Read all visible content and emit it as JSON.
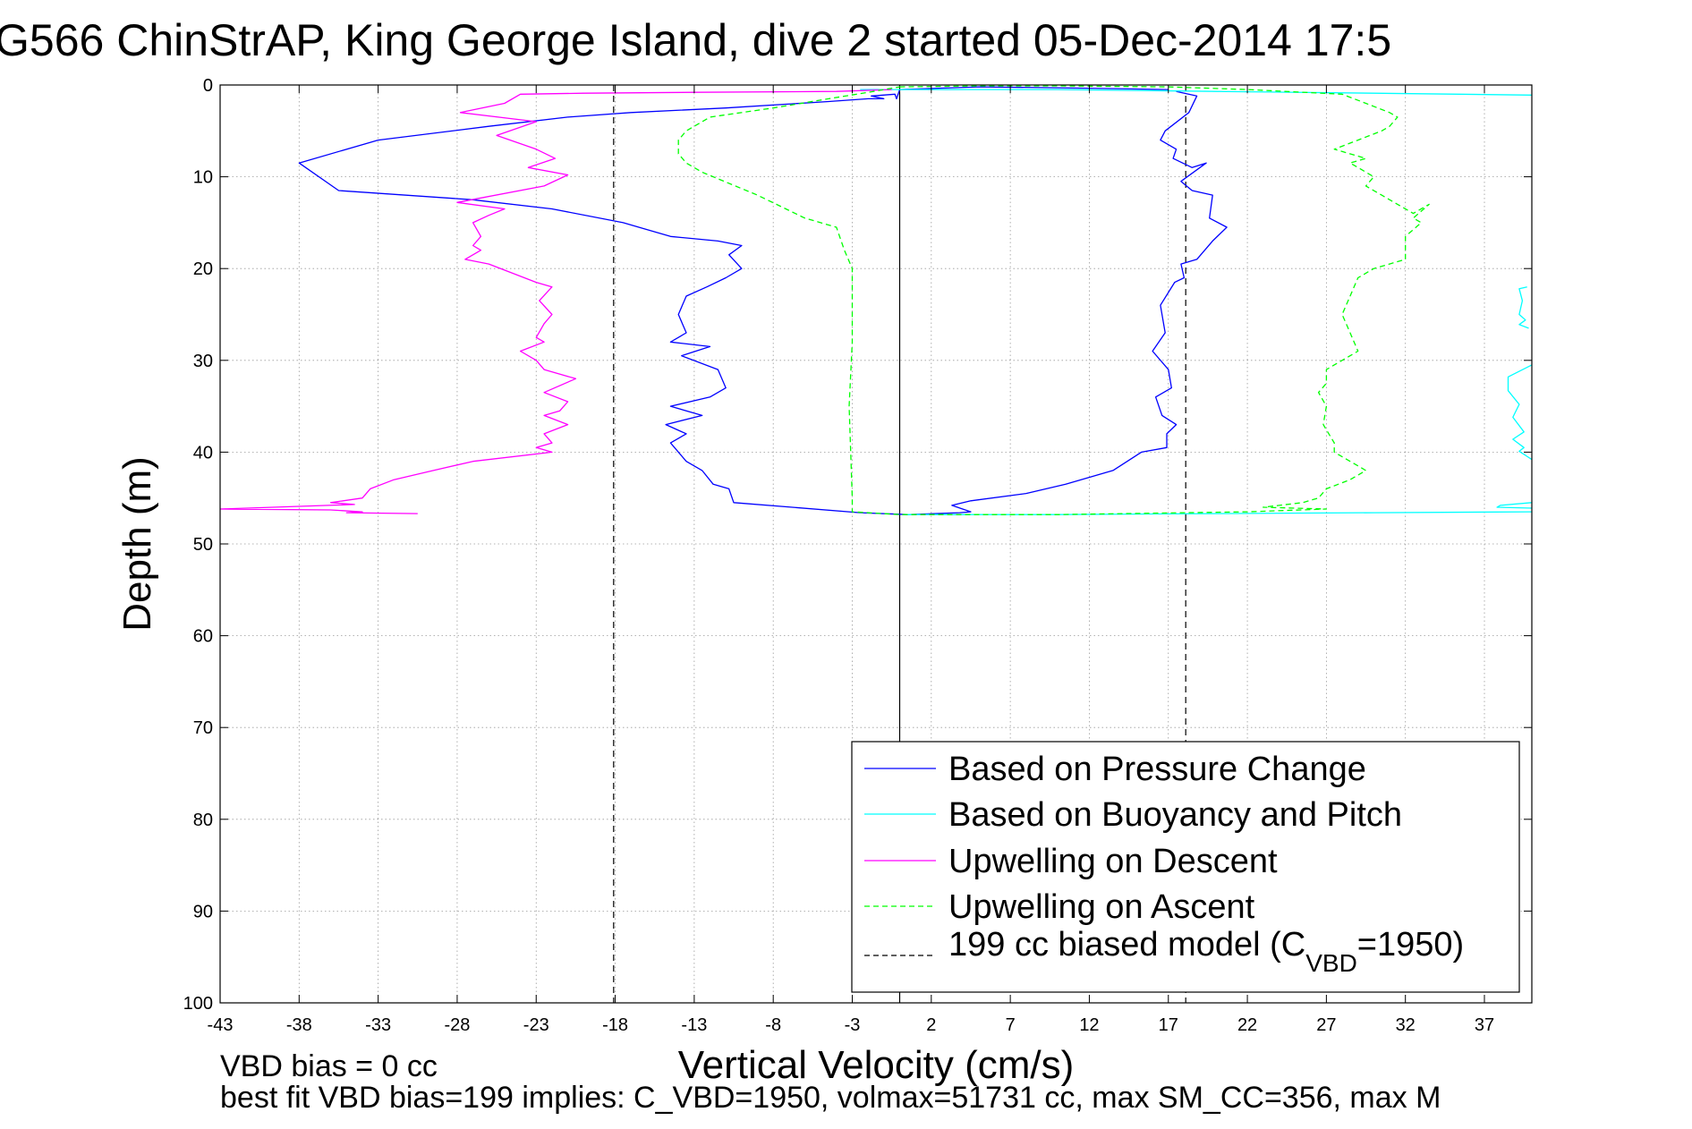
{
  "chart_data": {
    "type": "line",
    "title": "G566 ChinStrAP, King George Island, dive 2 started 05-Dec-2014 17:5",
    "xlabel": "Vertical Velocity (cm/s)",
    "ylabel": "Depth (m)",
    "xlim": [
      -43,
      40
    ],
    "ylim": [
      0,
      100
    ],
    "y_reversed": true,
    "grid": true,
    "legend_position": "bottom-right",
    "x_ticks": [
      -43,
      -38,
      -33,
      -28,
      -23,
      -18,
      -13,
      -8,
      -3,
      2,
      7,
      12,
      17,
      22,
      27,
      32,
      37
    ],
    "y_ticks": [
      0,
      10,
      20,
      30,
      40,
      50,
      60,
      70,
      80,
      90,
      100
    ],
    "notes": [
      "VBD bias = 0 cc",
      "best fit VBD bias=199 implies: C_VBD=1950, volmax=51731 cc, max SM_CC=356, max M"
    ],
    "legend": {
      "entries": [
        {
          "label": "Based on Pressure Change",
          "color": "#0000ff",
          "dash": "solid"
        },
        {
          "label": "Based on Buoyancy and Pitch",
          "color": "#00ffff",
          "dash": "solid"
        },
        {
          "label": "Upwelling on Descent",
          "color": "#ff00ff",
          "dash": "solid"
        },
        {
          "label": "Upwelling on Ascent",
          "color": "#00ff00",
          "dash": "dashed"
        }
      ],
      "model_label_prefix": "199 cc biased model (C",
      "model_label_sub": "VBD",
      "model_label_suffix": "=1950)",
      "model_color": "#000000"
    },
    "reference_lines": [
      {
        "x": 0,
        "style": "solid",
        "color": "#000000"
      },
      {
        "x": -18.1,
        "style": "dashed",
        "color": "#000000"
      },
      {
        "x": 18.1,
        "style": "dashed",
        "color": "#000000"
      }
    ],
    "series": [
      {
        "name": "Based on Pressure Change",
        "color": "#0000ff",
        "dash": "solid",
        "points": [
          [
            17.5,
            0.7
          ],
          [
            18.8,
            1.2
          ],
          [
            18.3,
            3
          ],
          [
            16.8,
            5
          ],
          [
            16.5,
            6
          ],
          [
            17.5,
            7
          ],
          [
            17.3,
            8
          ],
          [
            18.5,
            9
          ],
          [
            19.4,
            8.5
          ],
          [
            17.8,
            10.5
          ],
          [
            18.5,
            11.5
          ],
          [
            19.8,
            12
          ],
          [
            19.6,
            14.5
          ],
          [
            20.7,
            15.5
          ],
          [
            19.8,
            17
          ],
          [
            18.8,
            19
          ],
          [
            17.8,
            19.5
          ],
          [
            18.0,
            21
          ],
          [
            17.4,
            21.5
          ],
          [
            16.5,
            24
          ],
          [
            16.8,
            27
          ],
          [
            16.0,
            29
          ],
          [
            17.0,
            31
          ],
          [
            17.2,
            33
          ],
          [
            16.2,
            34
          ],
          [
            16.6,
            36
          ],
          [
            17.5,
            37
          ],
          [
            16.9,
            38
          ],
          [
            16.9,
            39.5
          ],
          [
            15.3,
            40
          ],
          [
            13.5,
            42
          ],
          [
            10.5,
            43.5
          ],
          [
            8.0,
            44.5
          ],
          [
            4.5,
            45.3
          ],
          [
            3.3,
            45.8
          ],
          [
            4.5,
            46.5
          ],
          [
            3.8,
            46.6
          ],
          [
            0.5,
            46.8
          ],
          [
            -2.5,
            46.6
          ],
          [
            -10.5,
            45.5
          ],
          [
            -10.8,
            44
          ],
          [
            -11.8,
            43.5
          ],
          [
            -12.5,
            42
          ],
          [
            -13.5,
            41
          ],
          [
            -14.5,
            39
          ],
          [
            -13.5,
            38
          ],
          [
            -14.8,
            37
          ],
          [
            -12.5,
            36
          ],
          [
            -14.5,
            35
          ],
          [
            -12.0,
            34
          ],
          [
            -11.0,
            33
          ],
          [
            -11.5,
            31
          ],
          [
            -13.8,
            29.5
          ],
          [
            -12.0,
            28.5
          ],
          [
            -14.5,
            28
          ],
          [
            -13.5,
            27
          ],
          [
            -14.0,
            25
          ],
          [
            -13.5,
            23
          ],
          [
            -12.2,
            22
          ],
          [
            -11.0,
            21
          ],
          [
            -10.0,
            20
          ],
          [
            -10.8,
            18.5
          ],
          [
            -10.0,
            17.5
          ],
          [
            -11.5,
            17
          ],
          [
            -14.5,
            16.5
          ],
          [
            -17.5,
            15
          ],
          [
            -22.0,
            13.5
          ],
          [
            -27.0,
            12.5
          ],
          [
            -35.5,
            11.5
          ],
          [
            -38.0,
            8.5
          ],
          [
            -33.0,
            6
          ],
          [
            -26.0,
            4.5
          ],
          [
            -21.0,
            3.5
          ],
          [
            -17.0,
            3
          ],
          [
            -11.0,
            2.5
          ],
          [
            -4.5,
            1.8
          ],
          [
            -2.0,
            1.5
          ],
          [
            -1.0,
            1.5
          ],
          [
            -1.8,
            1.2
          ],
          [
            -0.3,
            1.0
          ],
          [
            -0.2,
            1.5
          ],
          [
            0.0,
            0.5
          ],
          [
            5.0,
            0.2
          ],
          [
            10.0,
            0.3
          ],
          [
            17.0,
            0.5
          ]
        ]
      },
      {
        "name": "Based on Buoyancy and Pitch",
        "color": "#00ffff",
        "dash": "solid",
        "segments": [
          [
            [
              -2.5,
              0.5
            ],
            [
              10.0,
              0.5
            ],
            [
              20.0,
              0.7
            ],
            [
              30.0,
              0.9
            ],
            [
              40.0,
              1.1
            ]
          ],
          [
            [
              39.7,
              22
            ],
            [
              39.2,
              22.2
            ],
            [
              39.4,
              23.5
            ],
            [
              39.2,
              25
            ],
            [
              39.6,
              25.6
            ],
            [
              39.2,
              26.1
            ],
            [
              39.8,
              26.5
            ]
          ],
          [
            [
              40.0,
              30.5
            ],
            [
              38.5,
              31.8
            ],
            [
              38.5,
              33.3
            ],
            [
              39.2,
              34.8
            ],
            [
              38.8,
              36.2
            ],
            [
              39.5,
              37.8
            ],
            [
              38.8,
              38.6
            ],
            [
              39.5,
              39.5
            ],
            [
              39.2,
              39.9
            ],
            [
              40.0,
              40.8
            ]
          ],
          [
            [
              40.0,
              45.5
            ],
            [
              38.0,
              45.8
            ],
            [
              37.8,
              46
            ],
            [
              40.0,
              46.1
            ]
          ],
          [
            [
              0.5,
              46.8
            ],
            [
              10.0,
              46.8
            ],
            [
              20.0,
              46.7
            ],
            [
              30.0,
              46.6
            ],
            [
              40.0,
              46.5
            ]
          ]
        ]
      },
      {
        "name": "Upwelling on Descent",
        "color": "#ff00ff",
        "dash": "solid",
        "points": [
          [
            -0.5,
            0.5
          ],
          [
            -4.0,
            0.7
          ],
          [
            -13.0,
            0.8
          ],
          [
            -20.0,
            0.9
          ],
          [
            -24.0,
            1.0
          ],
          [
            -25.0,
            2.0
          ],
          [
            -27.8,
            3.0
          ],
          [
            -23.0,
            4.0
          ],
          [
            -25.5,
            5.5
          ],
          [
            -23.0,
            7.0
          ],
          [
            -21.8,
            8.0
          ],
          [
            -23.5,
            9.0
          ],
          [
            -21.0,
            9.8
          ],
          [
            -22.5,
            11.0
          ],
          [
            -28.0,
            12.8
          ],
          [
            -25.0,
            13.5
          ],
          [
            -26.0,
            14.2
          ],
          [
            -27.0,
            15.0
          ],
          [
            -26.5,
            16.5
          ],
          [
            -27.0,
            17.5
          ],
          [
            -26.5,
            18.0
          ],
          [
            -27.5,
            19.0
          ],
          [
            -26.0,
            19.5
          ],
          [
            -23.0,
            21.5
          ],
          [
            -22.0,
            22.0
          ],
          [
            -22.8,
            23.5
          ],
          [
            -22.0,
            25.0
          ],
          [
            -22.5,
            26.0
          ],
          [
            -23.0,
            27.5
          ],
          [
            -22.5,
            28.0
          ],
          [
            -24.0,
            29.0
          ],
          [
            -23.0,
            30.0
          ],
          [
            -22.5,
            31.0
          ],
          [
            -20.5,
            32.0
          ],
          [
            -22.5,
            33.5
          ],
          [
            -21.0,
            34.5
          ],
          [
            -21.5,
            35.5
          ],
          [
            -22.5,
            36.0
          ],
          [
            -21.0,
            37.0
          ],
          [
            -22.5,
            38.0
          ],
          [
            -22.0,
            39.0
          ],
          [
            -23.0,
            39.5
          ],
          [
            -22.0,
            40.0
          ],
          [
            -27.0,
            41.0
          ],
          [
            -29.5,
            42.0
          ],
          [
            -32.0,
            43.0
          ],
          [
            -33.5,
            44.0
          ],
          [
            -34.0,
            45.0
          ],
          [
            -36.0,
            45.5
          ],
          [
            -34.5,
            45.7
          ],
          [
            -43.0,
            46.2
          ],
          [
            -36.0,
            46.3
          ],
          [
            -34.0,
            46.5
          ],
          [
            -35.0,
            46.6
          ],
          [
            -30.5,
            46.7
          ]
        ]
      },
      {
        "name": "Upwelling on Ascent",
        "color": "#00ff00",
        "dash": "dashed",
        "points": [
          [
            0.0,
            0.2
          ],
          [
            5.0,
            0.1
          ],
          [
            10.0,
            0.1
          ],
          [
            17.0,
            0.2
          ],
          [
            22.0,
            0.5
          ],
          [
            28.0,
            1.0
          ],
          [
            29.5,
            2.0
          ],
          [
            31.0,
            3.0
          ],
          [
            31.5,
            3.5
          ],
          [
            31.0,
            4.5
          ],
          [
            30.5,
            5.0
          ],
          [
            29.0,
            6.0
          ],
          [
            27.5,
            7.0
          ],
          [
            29.5,
            8.0
          ],
          [
            28.5,
            8.5
          ],
          [
            29.0,
            9.0
          ],
          [
            30.0,
            10.0
          ],
          [
            29.5,
            11.0
          ],
          [
            30.5,
            12.0
          ],
          [
            31.5,
            13.0
          ],
          [
            32.5,
            14.0
          ],
          [
            33.5,
            13.0
          ],
          [
            32.5,
            14.5
          ],
          [
            33.0,
            15.0
          ],
          [
            32.0,
            16.5
          ],
          [
            32.0,
            19.0
          ],
          [
            30.0,
            20.0
          ],
          [
            29.0,
            21.0
          ],
          [
            28.5,
            23.0
          ],
          [
            28.0,
            25.0
          ],
          [
            28.5,
            27.0
          ],
          [
            29.0,
            29.0
          ],
          [
            28.0,
            30.0
          ],
          [
            27.0,
            31.0
          ],
          [
            27.0,
            32.5
          ],
          [
            26.5,
            33.5
          ],
          [
            27.0,
            35.0
          ],
          [
            26.8,
            37.0
          ],
          [
            27.5,
            39.0
          ],
          [
            27.5,
            40.0
          ],
          [
            28.5,
            41.0
          ],
          [
            29.5,
            42.0
          ],
          [
            28.5,
            43.0
          ],
          [
            27.0,
            44.0
          ],
          [
            26.5,
            45.0
          ],
          [
            25.5,
            45.5
          ],
          [
            23.0,
            46.0
          ],
          [
            27.0,
            46.2
          ],
          [
            22.0,
            46.5
          ],
          [
            10.0,
            46.8
          ],
          [
            0.0,
            46.8
          ],
          [
            -3.0,
            46.5
          ],
          [
            -3.0,
            45.0
          ],
          [
            -3.2,
            35.0
          ],
          [
            -3.0,
            28.0
          ],
          [
            -3.0,
            20.0
          ],
          [
            -3.5,
            18.0
          ],
          [
            -4.0,
            15.5
          ],
          [
            -6.0,
            14.5
          ],
          [
            -9.0,
            12.0
          ],
          [
            -12.5,
            9.5
          ],
          [
            -13.5,
            8.5
          ],
          [
            -14.0,
            7.5
          ],
          [
            -14.0,
            6.0
          ],
          [
            -13.5,
            5.0
          ],
          [
            -12.0,
            3.5
          ],
          [
            -8.0,
            2.5
          ],
          [
            -4.5,
            1.5
          ],
          [
            -2.0,
            0.8
          ],
          [
            0.0,
            0.2
          ]
        ]
      }
    ]
  }
}
